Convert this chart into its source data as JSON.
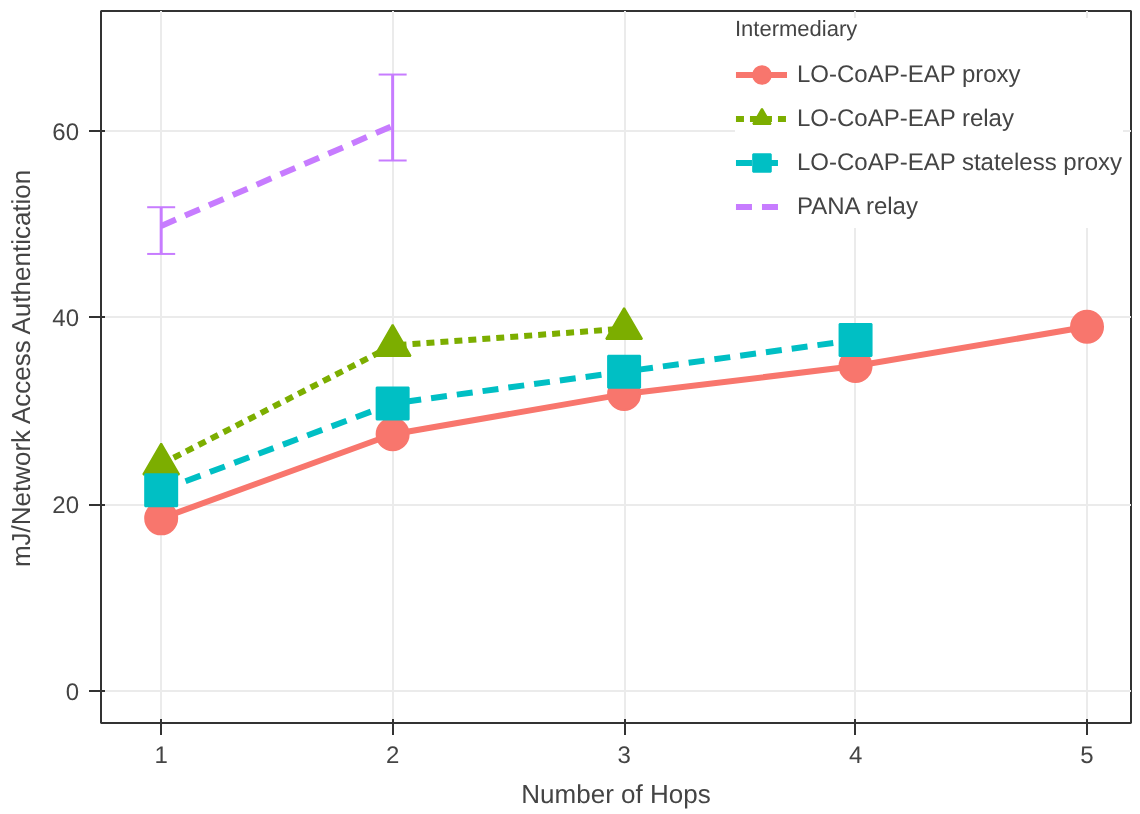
{
  "chart_data": {
    "type": "line",
    "xlabel": "Number of Hops",
    "ylabel": "mJ/Network Access Authentication",
    "legend_title": "Intermediary",
    "legend": "top right",
    "grid": true,
    "xlim": [
      0.74,
      5.19
    ],
    "xticks": [
      1,
      2,
      3,
      4,
      5
    ],
    "ylim": [
      -3.4,
      72.8
    ],
    "yticks": [
      0,
      20,
      40,
      60
    ],
    "series": [
      {
        "name": "LO-CoAP-EAP proxy",
        "color": "#f8766d",
        "marker": "circle",
        "line_style": "solid",
        "x": [
          1,
          2,
          3,
          4,
          5
        ],
        "values": [
          18.5,
          27.5,
          31.8,
          34.8,
          39
        ]
      },
      {
        "name": "LO-CoAP-EAP relay",
        "color": "#7cae00",
        "marker": "triangle",
        "line_style": "dotted",
        "x": [
          1,
          2,
          3
        ],
        "values": [
          24.3,
          37,
          38.8
        ]
      },
      {
        "name": "LO-CoAP-EAP stateless proxy",
        "color": "#00bfc4",
        "marker": "square",
        "line_style": "dashed",
        "x": [
          1,
          2,
          3,
          4
        ],
        "values": [
          21.5,
          30.8,
          34.2,
          37.6
        ]
      },
      {
        "name": "PANA relay",
        "color": "#c77cff",
        "marker": "none",
        "line_style": "dashed",
        "x": [
          1,
          2
        ],
        "values": [
          49.8,
          60.5
        ],
        "errors": [
          [
            46.8,
            51.8
          ],
          [
            56.8,
            66
          ]
        ]
      }
    ]
  }
}
